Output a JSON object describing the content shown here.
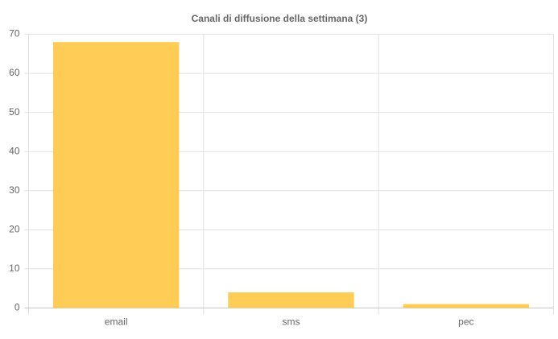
{
  "chart_data": {
    "type": "bar",
    "title": "Canali di diffusione della settimana (3)",
    "categories": [
      "email",
      "sms",
      "pec"
    ],
    "values": [
      68,
      4,
      1
    ],
    "color": "#ffcd56",
    "ylim": [
      0,
      70
    ],
    "yticks": [
      0,
      10,
      20,
      30,
      40,
      50,
      60,
      70
    ],
    "grid": true
  }
}
